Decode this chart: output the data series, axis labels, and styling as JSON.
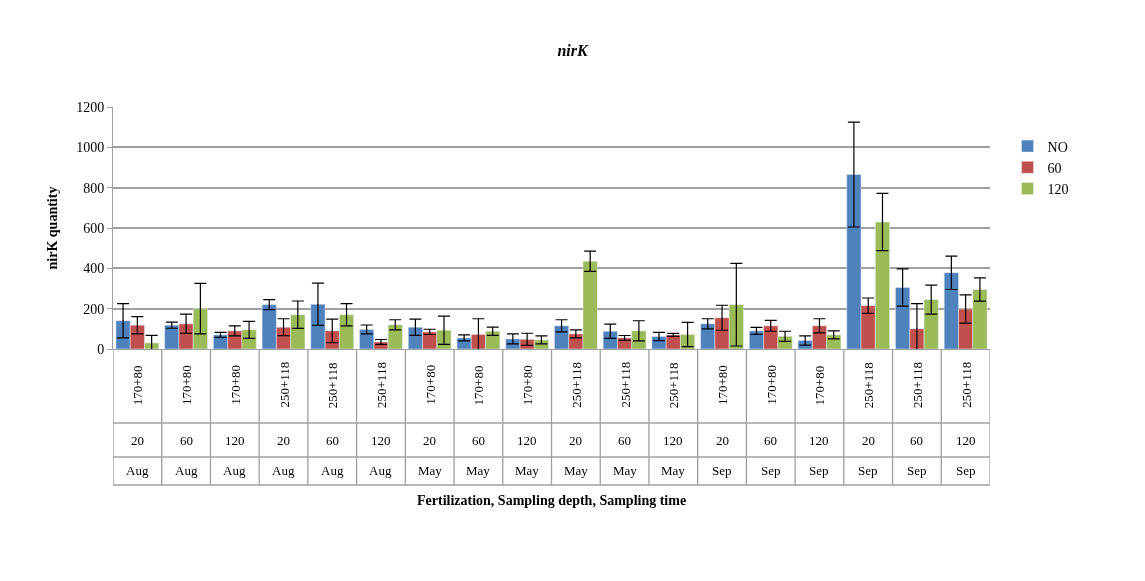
{
  "chart_data": {
    "type": "bar",
    "title": "nirK",
    "annotations": [
      "Fertilization, Sampling depth, Sampling time"
    ],
    "ylabel": "nirK quantity",
    "categories": [
      "170+80\n20\nAug",
      "170+80\n60\nAug",
      "170+80\n120\nAug",
      "250+118\n20\nAug",
      "250+118\n60\nAug",
      "250+118\n120\nAug",
      "170+80\n20\nMay",
      "170+80\n60\nMay",
      "170+80\n120\nMay",
      "250+118\n20\nMay",
      "250+118\n60\nMay",
      "250+118\n120\nMay",
      "170+80\n20\nSep",
      "170+80\n60\nSep",
      "170+80\n120\nSep",
      "250+118\n20\nSep",
      "250+118\n60\nSep",
      "250+118\n120\nSep"
    ],
    "series": [
      {
        "name": "NO",
        "color": "#4f81bd",
        "values": [
          140,
          118,
          70,
          220,
          222,
          97,
          108,
          55,
          50,
          115,
          88,
          62,
          125,
          90,
          42,
          865,
          305,
          378
        ],
        "errors": [
          85,
          15,
          12,
          25,
          105,
          22,
          40,
          15,
          25,
          30,
          35,
          20,
          25,
          17,
          23,
          260,
          92,
          83
        ]
      },
      {
        "name": "60",
        "color": "#c0504d",
        "values": [
          118,
          125,
          90,
          108,
          90,
          35,
          85,
          72,
          48,
          75,
          55,
          70,
          155,
          115,
          115,
          215,
          100,
          198
        ],
        "errors": [
          43,
          48,
          25,
          42,
          58,
          12,
          13,
          78,
          30,
          20,
          12,
          7,
          62,
          27,
          35,
          38,
          125,
          70
        ]
      },
      {
        "name": "120",
        "color": "#9bbb59",
        "values": [
          30,
          200,
          95,
          170,
          170,
          120,
          93,
          88,
          45,
          435,
          90,
          72,
          220,
          63,
          70,
          630,
          245,
          295
        ],
        "errors": [
          38,
          125,
          42,
          68,
          55,
          25,
          70,
          20,
          20,
          50,
          50,
          60,
          205,
          25,
          20,
          142,
          72,
          58
        ]
      }
    ],
    "ylim": [
      0,
      1200
    ],
    "yticks": [
      0,
      200,
      400,
      600,
      800,
      1000,
      1200
    ],
    "grid": "y",
    "legend": "right"
  }
}
